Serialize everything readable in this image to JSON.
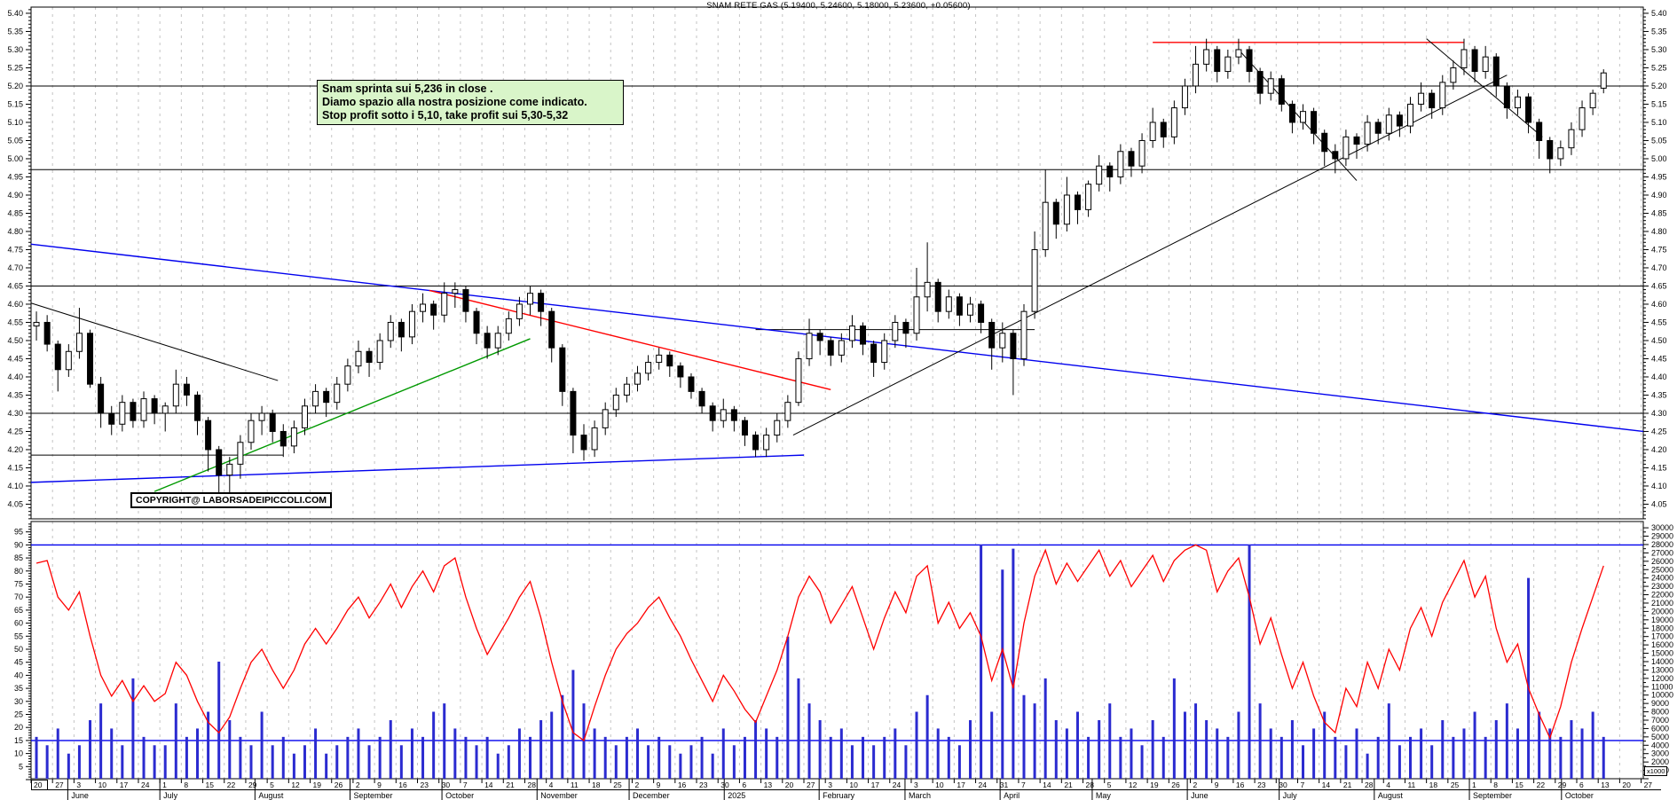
{
  "title": "SNAM RETE GAS (5.19400, 5.24600, 5.18000, 5.23600, +0.05600)",
  "annotation": {
    "line1": "Snam sprinta sui 5,236 in close .",
    "line2": "Diamo spazio alla nostra posizione come indicato.",
    "line3": "Stop profit sotto i 5,10, take profit sui 5,30-5,32"
  },
  "copyright": "COPYRIGHT@ LABORSADEIPICCOLI.COM",
  "volume_unit_note": "x1000",
  "colors": {
    "up_candle": "#ffffff",
    "down_candle": "#000000",
    "outline": "#000000",
    "volume_bar": "#2b2bd0",
    "oscillator_line": "#ff0000",
    "trend_blue": "#0000ee",
    "trend_red": "#ff0000",
    "trend_green": "#009900",
    "level_black": "#000000",
    "grid": "#c4c4c4",
    "annotation_bg": "#d9f5c9"
  },
  "chart_data": {
    "type": "candlestick",
    "instrument": "SNAM RETE GAS",
    "title_ohlc": {
      "open": "5.19400",
      "high": "5.24600",
      "low": "5.18000",
      "close": "5.23600",
      "change": "+0.05600"
    },
    "price_axis": {
      "min": 4.05,
      "max": 5.4,
      "step": 0.05
    },
    "oscillator_axis": {
      "min": 5,
      "max": 95,
      "step": 5,
      "ref_lines": [
        90,
        15
      ]
    },
    "volume_axis": {
      "min": 1000,
      "max": 30000,
      "step": 1000,
      "unit": "x1000"
    },
    "week_labels": [
      "20",
      "27",
      "3",
      "10",
      "17",
      "24",
      "1",
      "8",
      "15",
      "22",
      "29",
      "5",
      "12",
      "19",
      "26",
      "2",
      "9",
      "16",
      "23",
      "30",
      "7",
      "14",
      "21",
      "28",
      "4",
      "11",
      "18",
      "25",
      "2",
      "9",
      "16",
      "23",
      "30",
      "6",
      "13",
      "20",
      "27",
      "3",
      "10",
      "17",
      "24",
      "3",
      "10",
      "17",
      "24",
      "31",
      "7",
      "14",
      "21",
      "28",
      "5",
      "12",
      "19",
      "26",
      "2",
      "9",
      "16",
      "23",
      "30",
      "7",
      "14",
      "21",
      "28",
      "4",
      "11",
      "18",
      "25",
      "1",
      "8",
      "15",
      "22",
      "29",
      "6",
      "13",
      "20",
      "27"
    ],
    "months": [
      {
        "label": "June",
        "week": 1.71
      },
      {
        "label": "July",
        "week": 6.0
      },
      {
        "label": "August",
        "week": 10.43
      },
      {
        "label": "September",
        "week": 14.86
      },
      {
        "label": "October",
        "week": 19.14
      },
      {
        "label": "November",
        "week": 23.57
      },
      {
        "label": "December",
        "week": 27.86
      },
      {
        "label": "2025",
        "week": 32.29
      },
      {
        "label": "February",
        "week": 36.71
      },
      {
        "label": "March",
        "week": 40.71
      },
      {
        "label": "April",
        "week": 45.14
      },
      {
        "label": "May",
        "week": 49.43
      },
      {
        "label": "June",
        "week": 53.86
      },
      {
        "label": "July",
        "week": 58.14
      },
      {
        "label": "August",
        "week": 62.57
      },
      {
        "label": "September",
        "week": 67.0
      },
      {
        "label": "October",
        "week": 71.29
      }
    ],
    "candles": [
      [
        4.54,
        4.58,
        4.5,
        4.55
      ],
      [
        4.55,
        4.57,
        4.47,
        4.49
      ],
      [
        4.49,
        4.5,
        4.36,
        4.42
      ],
      [
        4.42,
        4.49,
        4.4,
        4.47
      ],
      [
        4.47,
        4.59,
        4.45,
        4.52
      ],
      [
        4.52,
        4.53,
        4.37,
        4.38
      ],
      [
        4.38,
        4.4,
        4.26,
        4.3
      ],
      [
        4.3,
        4.32,
        4.24,
        4.27
      ],
      [
        4.27,
        4.35,
        4.25,
        4.33
      ],
      [
        4.33,
        4.34,
        4.26,
        4.28
      ],
      [
        4.28,
        4.36,
        4.26,
        4.34
      ],
      [
        4.34,
        4.35,
        4.27,
        4.3
      ],
      [
        4.3,
        4.33,
        4.25,
        4.32
      ],
      [
        4.32,
        4.42,
        4.3,
        4.38
      ],
      [
        4.38,
        4.4,
        4.32,
        4.35
      ],
      [
        4.35,
        4.36,
        4.24,
        4.28
      ],
      [
        4.28,
        4.29,
        4.14,
        4.2
      ],
      [
        4.2,
        4.21,
        4.07,
        4.13
      ],
      [
        4.13,
        4.18,
        4.08,
        4.16
      ],
      [
        4.16,
        4.24,
        4.12,
        4.22
      ],
      [
        4.22,
        4.3,
        4.2,
        4.28
      ],
      [
        4.28,
        4.32,
        4.24,
        4.3
      ],
      [
        4.3,
        4.31,
        4.22,
        4.25
      ],
      [
        4.25,
        4.27,
        4.18,
        4.21
      ],
      [
        4.21,
        4.28,
        4.19,
        4.26
      ],
      [
        4.26,
        4.34,
        4.24,
        4.32
      ],
      [
        4.32,
        4.38,
        4.3,
        4.36
      ],
      [
        4.36,
        4.37,
        4.29,
        4.33
      ],
      [
        4.33,
        4.4,
        4.31,
        4.38
      ],
      [
        4.38,
        4.45,
        4.36,
        4.43
      ],
      [
        4.43,
        4.5,
        4.41,
        4.47
      ],
      [
        4.47,
        4.48,
        4.4,
        4.44
      ],
      [
        4.44,
        4.52,
        4.42,
        4.5
      ],
      [
        4.5,
        4.57,
        4.48,
        4.55
      ],
      [
        4.55,
        4.56,
        4.47,
        4.51
      ],
      [
        4.51,
        4.6,
        4.49,
        4.58
      ],
      [
        4.58,
        4.63,
        4.55,
        4.6
      ],
      [
        4.6,
        4.61,
        4.53,
        4.57
      ],
      [
        4.57,
        4.66,
        4.55,
        4.63
      ],
      [
        4.63,
        4.66,
        4.59,
        4.64
      ],
      [
        4.64,
        4.65,
        4.55,
        4.58
      ],
      [
        4.58,
        4.59,
        4.49,
        4.52
      ],
      [
        4.52,
        4.54,
        4.45,
        4.48
      ],
      [
        4.48,
        4.54,
        4.46,
        4.52
      ],
      [
        4.52,
        4.58,
        4.5,
        4.56
      ],
      [
        4.56,
        4.62,
        4.54,
        4.6
      ],
      [
        4.6,
        4.65,
        4.57,
        4.63
      ],
      [
        4.63,
        4.64,
        4.54,
        4.58
      ],
      [
        4.58,
        4.59,
        4.44,
        4.48
      ],
      [
        4.48,
        4.49,
        4.32,
        4.36
      ],
      [
        4.36,
        4.37,
        4.19,
        4.24
      ],
      [
        4.24,
        4.27,
        4.17,
        4.2
      ],
      [
        4.2,
        4.28,
        4.18,
        4.26
      ],
      [
        4.26,
        4.33,
        4.24,
        4.31
      ],
      [
        4.31,
        4.37,
        4.29,
        4.35
      ],
      [
        4.35,
        4.4,
        4.33,
        4.38
      ],
      [
        4.38,
        4.43,
        4.36,
        4.41
      ],
      [
        4.41,
        4.46,
        4.39,
        4.44
      ],
      [
        4.44,
        4.48,
        4.42,
        4.46
      ],
      [
        4.46,
        4.47,
        4.4,
        4.43
      ],
      [
        4.43,
        4.44,
        4.37,
        4.4
      ],
      [
        4.4,
        4.41,
        4.34,
        4.36
      ],
      [
        4.36,
        4.37,
        4.3,
        4.32
      ],
      [
        4.32,
        4.33,
        4.25,
        4.28
      ],
      [
        4.28,
        4.34,
        4.26,
        4.31
      ],
      [
        4.31,
        4.32,
        4.25,
        4.28
      ],
      [
        4.28,
        4.29,
        4.21,
        4.24
      ],
      [
        4.24,
        4.25,
        4.18,
        4.2
      ],
      [
        4.2,
        4.26,
        4.18,
        4.24
      ],
      [
        4.24,
        4.3,
        4.22,
        4.28
      ],
      [
        4.28,
        4.35,
        4.26,
        4.33
      ],
      [
        4.33,
        4.47,
        4.32,
        4.45
      ],
      [
        4.45,
        4.56,
        4.43,
        4.52
      ],
      [
        4.52,
        4.53,
        4.46,
        4.5
      ],
      [
        4.5,
        4.51,
        4.43,
        4.46
      ],
      [
        4.46,
        4.52,
        4.44,
        4.5
      ],
      [
        4.5,
        4.57,
        4.48,
        4.54
      ],
      [
        4.54,
        4.55,
        4.46,
        4.49
      ],
      [
        4.49,
        4.5,
        4.4,
        4.44
      ],
      [
        4.44,
        4.52,
        4.42,
        4.5
      ],
      [
        4.5,
        4.57,
        4.48,
        4.55
      ],
      [
        4.55,
        4.56,
        4.48,
        4.52
      ],
      [
        4.52,
        4.7,
        4.5,
        4.62
      ],
      [
        4.62,
        4.77,
        4.58,
        4.66
      ],
      [
        4.66,
        4.67,
        4.55,
        4.58
      ],
      [
        4.58,
        4.64,
        4.56,
        4.62
      ],
      [
        4.62,
        4.63,
        4.54,
        4.57
      ],
      [
        4.57,
        4.62,
        4.55,
        4.6
      ],
      [
        4.6,
        4.61,
        4.52,
        4.55
      ],
      [
        4.55,
        4.56,
        4.42,
        4.48
      ],
      [
        4.48,
        4.55,
        4.44,
        4.52
      ],
      [
        4.52,
        4.53,
        4.35,
        4.45
      ],
      [
        4.45,
        4.6,
        4.43,
        4.58
      ],
      [
        4.58,
        4.8,
        4.56,
        4.75
      ],
      [
        4.75,
        4.97,
        4.73,
        4.88
      ],
      [
        4.88,
        4.89,
        4.78,
        4.82
      ],
      [
        4.82,
        4.95,
        4.8,
        4.9
      ],
      [
        4.9,
        4.91,
        4.82,
        4.86
      ],
      [
        4.86,
        4.94,
        4.84,
        4.93
      ],
      [
        4.93,
        5.01,
        4.91,
        4.98
      ],
      [
        4.98,
        4.99,
        4.91,
        4.95
      ],
      [
        4.95,
        5.04,
        4.93,
        5.02
      ],
      [
        5.02,
        5.03,
        4.95,
        4.98
      ],
      [
        4.98,
        5.07,
        4.96,
        5.05
      ],
      [
        5.05,
        5.14,
        5.03,
        5.1
      ],
      [
        5.1,
        5.11,
        5.03,
        5.06
      ],
      [
        5.06,
        5.16,
        5.04,
        5.14
      ],
      [
        5.14,
        5.22,
        5.12,
        5.2
      ],
      [
        5.2,
        5.31,
        5.18,
        5.26
      ],
      [
        5.26,
        5.33,
        5.24,
        5.3
      ],
      [
        5.3,
        5.31,
        5.21,
        5.24
      ],
      [
        5.24,
        5.3,
        5.22,
        5.28
      ],
      [
        5.28,
        5.33,
        5.26,
        5.3
      ],
      [
        5.3,
        5.31,
        5.21,
        5.24
      ],
      [
        5.24,
        5.25,
        5.15,
        5.18
      ],
      [
        5.18,
        5.24,
        5.16,
        5.22
      ],
      [
        5.22,
        5.23,
        5.13,
        5.15
      ],
      [
        5.15,
        5.16,
        5.07,
        5.1
      ],
      [
        5.1,
        5.15,
        5.08,
        5.13
      ],
      [
        5.13,
        5.14,
        5.04,
        5.07
      ],
      [
        5.07,
        5.08,
        4.98,
        5.02
      ],
      [
        5.02,
        5.04,
        4.96,
        5.0
      ],
      [
        5.0,
        5.08,
        4.98,
        5.06
      ],
      [
        5.06,
        5.07,
        5.0,
        5.04
      ],
      [
        5.04,
        5.12,
        5.02,
        5.1
      ],
      [
        5.1,
        5.11,
        5.04,
        5.07
      ],
      [
        5.07,
        5.14,
        5.05,
        5.12
      ],
      [
        5.12,
        5.13,
        5.06,
        5.09
      ],
      [
        5.09,
        5.17,
        5.07,
        5.15
      ],
      [
        5.15,
        5.21,
        5.13,
        5.18
      ],
      [
        5.18,
        5.19,
        5.11,
        5.14
      ],
      [
        5.14,
        5.23,
        5.12,
        5.21
      ],
      [
        5.21,
        5.27,
        5.19,
        5.25
      ],
      [
        5.25,
        5.33,
        5.23,
        5.3
      ],
      [
        5.3,
        5.31,
        5.21,
        5.24
      ],
      [
        5.24,
        5.31,
        5.22,
        5.28
      ],
      [
        5.28,
        5.29,
        5.17,
        5.2
      ],
      [
        5.2,
        5.21,
        5.11,
        5.14
      ],
      [
        5.14,
        5.19,
        5.12,
        5.17
      ],
      [
        5.17,
        5.18,
        5.07,
        5.1
      ],
      [
        5.1,
        5.11,
        5.0,
        5.05
      ],
      [
        5.05,
        5.06,
        4.96,
        5.0
      ],
      [
        5.0,
        5.05,
        4.98,
        5.03
      ],
      [
        5.03,
        5.1,
        5.01,
        5.08
      ],
      [
        5.08,
        5.16,
        5.06,
        5.14
      ],
      [
        5.14,
        5.19,
        5.12,
        5.18
      ],
      [
        5.194,
        5.246,
        5.18,
        5.236
      ]
    ],
    "volumes_k": [
      5,
      4,
      6,
      3,
      4,
      7,
      9,
      6,
      4,
      12,
      5,
      4,
      4,
      9,
      5,
      6,
      8,
      14,
      7,
      5,
      4,
      8,
      4,
      5,
      3,
      4,
      6,
      3,
      4,
      5,
      6,
      4,
      5,
      7,
      4,
      6,
      5,
      8,
      9,
      6,
      5,
      4,
      5,
      3,
      4,
      6,
      5,
      7,
      8,
      10,
      13,
      9,
      6,
      5,
      4,
      5,
      6,
      4,
      5,
      4,
      3,
      4,
      5,
      3,
      6,
      4,
      5,
      7,
      6,
      5,
      17,
      12,
      9,
      7,
      5,
      6,
      4,
      5,
      4,
      5,
      6,
      4,
      8,
      10,
      6,
      5,
      4,
      7,
      28,
      8,
      25,
      27.5,
      10,
      9,
      12,
      7,
      6,
      8,
      5,
      7,
      9,
      5,
      6,
      4,
      7,
      5,
      12,
      8,
      9,
      7,
      6,
      5,
      8,
      28,
      9,
      6,
      5,
      7,
      4,
      6,
      8,
      5,
      4,
      6,
      3,
      5,
      9,
      4,
      5,
      6,
      4,
      7,
      5,
      6,
      8,
      5,
      7,
      9,
      6,
      24,
      8,
      6,
      5,
      7,
      6,
      8,
      5
    ],
    "oscillator": [
      83,
      84,
      70,
      65,
      72,
      55,
      40,
      32,
      38,
      30,
      36,
      30,
      33,
      45,
      40,
      30,
      22,
      18,
      24,
      35,
      45,
      50,
      42,
      35,
      42,
      52,
      58,
      52,
      58,
      65,
      70,
      62,
      68,
      75,
      66,
      74,
      80,
      72,
      82,
      85,
      70,
      58,
      48,
      55,
      62,
      70,
      76,
      62,
      45,
      30,
      18,
      15,
      28,
      40,
      50,
      56,
      60,
      66,
      70,
      62,
      55,
      46,
      38,
      30,
      40,
      34,
      27,
      22,
      32,
      42,
      55,
      70,
      78,
      72,
      60,
      67,
      74,
      62,
      50,
      62,
      72,
      64,
      78,
      82,
      60,
      68,
      58,
      64,
      55,
      38,
      50,
      35,
      60,
      78,
      88,
      75,
      83,
      76,
      82,
      88,
      78,
      84,
      74,
      80,
      86,
      76,
      84,
      88,
      90,
      88,
      72,
      80,
      85,
      70,
      52,
      62,
      48,
      35,
      45,
      32,
      22,
      18,
      35,
      28,
      45,
      35,
      50,
      42,
      58,
      66,
      55,
      68,
      76,
      84,
      70,
      78,
      58,
      45,
      52,
      35,
      25,
      16,
      28,
      45,
      58,
      70,
      82
    ],
    "price_hlines": [
      {
        "p": 5.2,
        "i1": -0.5,
        "i2": 150.2,
        "color": "black",
        "w": 1
      },
      {
        "p": 4.97,
        "i1": -0.5,
        "i2": 150.2,
        "color": "black",
        "w": 1
      },
      {
        "p": 4.65,
        "i1": -0.5,
        "i2": 150.2,
        "color": "black",
        "w": 1
      },
      {
        "p": 4.3,
        "i1": -0.5,
        "i2": 150.2,
        "color": "black",
        "w": 1
      },
      {
        "p": 4.185,
        "i1": -0.5,
        "i2": 23,
        "color": "black",
        "w": 1
      },
      {
        "p": 4.53,
        "i1": 67,
        "i2": 93,
        "color": "black",
        "w": 1
      },
      {
        "p": 5.32,
        "i1": 104,
        "i2": 133,
        "color": "red",
        "w": 1.4
      }
    ],
    "trendlines": [
      {
        "i1": -0.5,
        "p1": 4.765,
        "i2": 150.2,
        "p2": 4.25,
        "color": "blue",
        "w": 1.4
      },
      {
        "i1": -0.5,
        "p1": 4.11,
        "i2": 71.5,
        "p2": 4.185,
        "color": "blue",
        "w": 1.4
      },
      {
        "i1": -0.5,
        "p1": 4.603,
        "i2": 22.5,
        "p2": 4.39,
        "color": "black",
        "w": 1
      },
      {
        "i1": 11,
        "p1": 4.085,
        "i2": 46,
        "p2": 4.505,
        "color": "green",
        "w": 1.4
      },
      {
        "i1": 36.6,
        "p1": 4.638,
        "i2": 74,
        "p2": 4.365,
        "color": "red",
        "w": 1.4
      },
      {
        "i1": 70.5,
        "p1": 4.24,
        "i2": 137,
        "p2": 5.23,
        "color": "black",
        "w": 1
      },
      {
        "i1": 112,
        "p1": 5.3,
        "i2": 123,
        "p2": 4.94,
        "color": "black",
        "w": 1
      },
      {
        "i1": 129.5,
        "p1": 5.33,
        "i2": 140.3,
        "p2": 5.06,
        "color": "black",
        "w": 1
      }
    ],
    "osc_ref_lines": [
      90,
      15
    ]
  }
}
